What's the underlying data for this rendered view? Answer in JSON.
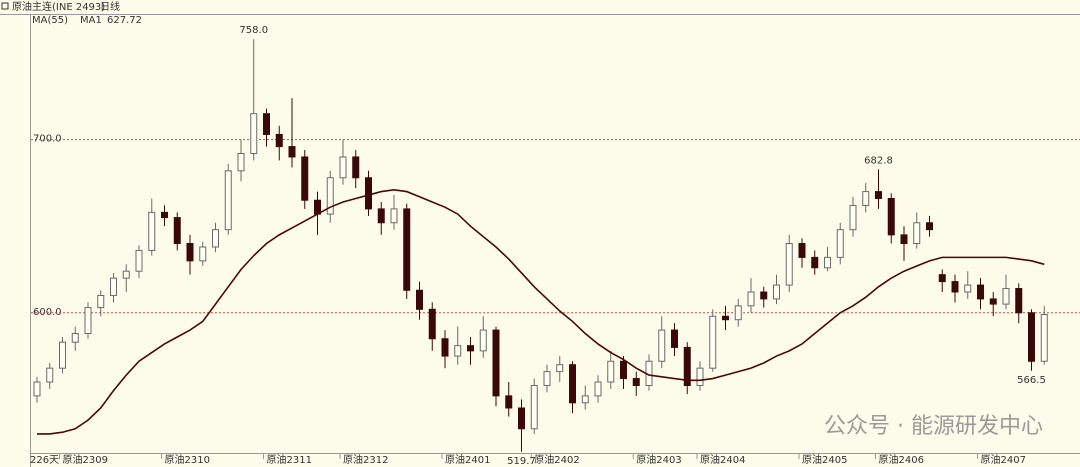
{
  "chart_data": {
    "type": "candlestick",
    "title": "原油主连(INE 2493)",
    "period": "日线",
    "indicator": "MA(55)",
    "ma": {
      "name": "MA1",
      "last": 627.72,
      "color": "#4a0808",
      "values": [
        530,
        530,
        531,
        533,
        538,
        545,
        555,
        564,
        572,
        577,
        582,
        586,
        590,
        595,
        605,
        615,
        625,
        633,
        640,
        645,
        649,
        653,
        657,
        661,
        664,
        666,
        668,
        670,
        671,
        670,
        667,
        664,
        661,
        657,
        650,
        644,
        638,
        631,
        623,
        615,
        608,
        601,
        595,
        588,
        582,
        577,
        573,
        568,
        564,
        563,
        562,
        561,
        561,
        562,
        564,
        566,
        568,
        571,
        575,
        578,
        582,
        588,
        594,
        600,
        604,
        609,
        615,
        620,
        624,
        627,
        630,
        632,
        632,
        632,
        632,
        632,
        632,
        631,
        630,
        628
      ]
    },
    "days_label": "226天",
    "up_color": "#6a6a6a",
    "down_color": "#3a0808",
    "ylim": [
      519,
      772
    ],
    "yticks": [
      {
        "value": 600,
        "label": "600.0"
      },
      {
        "value": 700,
        "label": "700.0"
      }
    ],
    "grid": true,
    "ohlc": [
      [
        552,
        563,
        548,
        560
      ],
      [
        560,
        571,
        556,
        568
      ],
      [
        568,
        586,
        565,
        583
      ],
      [
        583,
        592,
        578,
        588
      ],
      [
        588,
        606,
        585,
        603
      ],
      [
        603,
        613,
        598,
        610
      ],
      [
        610,
        623,
        606,
        620
      ],
      [
        620,
        628,
        612,
        624
      ],
      [
        624,
        639,
        620,
        636
      ],
      [
        636,
        666,
        633,
        658
      ],
      [
        658,
        662,
        650,
        655
      ],
      [
        655,
        658,
        636,
        640
      ],
      [
        640,
        645,
        622,
        630
      ],
      [
        630,
        641,
        627,
        638
      ],
      [
        638,
        652,
        635,
        648
      ],
      [
        648,
        686,
        645,
        682
      ],
      [
        682,
        700,
        676,
        692
      ],
      [
        692,
        758,
        688,
        715
      ],
      [
        715,
        718,
        696,
        703
      ],
      [
        703,
        708,
        688,
        696
      ],
      [
        696,
        724,
        684,
        690
      ],
      [
        690,
        694,
        660,
        665
      ],
      [
        665,
        670,
        645,
        657
      ],
      [
        657,
        682,
        652,
        678
      ],
      [
        678,
        700,
        674,
        690
      ],
      [
        690,
        694,
        672,
        678
      ],
      [
        678,
        682,
        656,
        660
      ],
      [
        660,
        664,
        645,
        652
      ],
      [
        652,
        668,
        648,
        660
      ],
      [
        660,
        663,
        608,
        613
      ],
      [
        613,
        618,
        596,
        602
      ],
      [
        602,
        606,
        578,
        585
      ],
      [
        585,
        590,
        568,
        575
      ],
      [
        575,
        592,
        570,
        581
      ],
      [
        581,
        586,
        570,
        578
      ],
      [
        578,
        598,
        574,
        590
      ],
      [
        590,
        592,
        546,
        552
      ],
      [
        552,
        560,
        540,
        545
      ],
      [
        545,
        550,
        519.7,
        533
      ],
      [
        533,
        562,
        530,
        558
      ],
      [
        558,
        570,
        554,
        566
      ],
      [
        566,
        575,
        560,
        570
      ],
      [
        570,
        572,
        542,
        548
      ],
      [
        548,
        558,
        544,
        552
      ],
      [
        552,
        564,
        548,
        560
      ],
      [
        560,
        578,
        556,
        572
      ],
      [
        572,
        575,
        556,
        562
      ],
      [
        562,
        566,
        552,
        558
      ],
      [
        558,
        576,
        555,
        572
      ],
      [
        572,
        598,
        568,
        590
      ],
      [
        590,
        594,
        575,
        580
      ],
      [
        580,
        583,
        553,
        558
      ],
      [
        558,
        572,
        555,
        568
      ],
      [
        568,
        602,
        566,
        598
      ],
      [
        598,
        604,
        590,
        596
      ],
      [
        596,
        608,
        592,
        604
      ],
      [
        604,
        620,
        600,
        612
      ],
      [
        612,
        615,
        603,
        608
      ],
      [
        608,
        622,
        605,
        616
      ],
      [
        616,
        645,
        612,
        640
      ],
      [
        640,
        643,
        626,
        632
      ],
      [
        632,
        636,
        622,
        626
      ],
      [
        626,
        638,
        624,
        632
      ],
      [
        632,
        652,
        628,
        648
      ],
      [
        648,
        667,
        644,
        662
      ],
      [
        662,
        675,
        658,
        670
      ],
      [
        670,
        682.8,
        660,
        666
      ],
      [
        666,
        669,
        640,
        645
      ],
      [
        645,
        650,
        630,
        640
      ],
      [
        640,
        658,
        637,
        652
      ],
      [
        652,
        656,
        644,
        648
      ],
      [
        622,
        625,
        612,
        618
      ],
      [
        618,
        622,
        606,
        612
      ],
      [
        612,
        624,
        608,
        616
      ],
      [
        616,
        620,
        602,
        608
      ],
      [
        608,
        612,
        598,
        605
      ],
      [
        605,
        622,
        602,
        614
      ],
      [
        614,
        617,
        594,
        600
      ],
      [
        600,
        602,
        566.5,
        572
      ],
      [
        572,
        604,
        570,
        599
      ]
    ],
    "month_labels": [
      {
        "index": 2,
        "label": "原油2309"
      },
      {
        "index": 10,
        "label": "原油2310"
      },
      {
        "index": 18,
        "label": "原油2311"
      },
      {
        "index": 24,
        "label": "原油2312"
      },
      {
        "index": 32,
        "label": "原油2401"
      },
      {
        "index": 39,
        "label": "原油2402"
      },
      {
        "index": 47,
        "label": "原油2403"
      },
      {
        "index": 52,
        "label": "原油2404"
      },
      {
        "index": 60,
        "label": "原油2405"
      },
      {
        "index": 66,
        "label": "原油2406"
      },
      {
        "index": 74,
        "label": "原油2407"
      }
    ],
    "annotations": [
      {
        "index": 17,
        "value": 758,
        "label": "758.0",
        "position": "above"
      },
      {
        "index": 38,
        "value": 519.7,
        "label": "519.7",
        "position": "below"
      },
      {
        "index": 66,
        "value": 682.8,
        "label": "682.8",
        "position": "above"
      },
      {
        "index": 78,
        "value": 566.5,
        "label": "566.5",
        "position": "below"
      }
    ],
    "watermark": "公众号 · 能源研发中心"
  }
}
